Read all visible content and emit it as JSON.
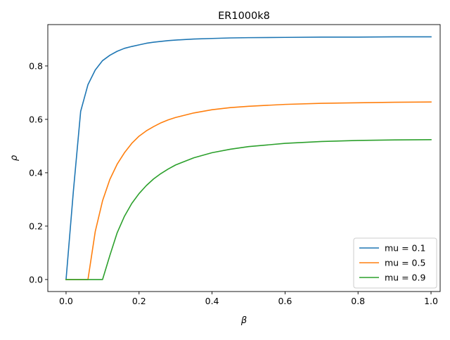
{
  "chart_data": {
    "type": "line",
    "title": "ER1000k8",
    "xlabel": "β",
    "ylabel": "ρ",
    "xlim": [
      -0.05,
      1.025
    ],
    "ylim": [
      -0.045,
      0.955
    ],
    "xticks": [
      0.0,
      0.2,
      0.4,
      0.6,
      0.8,
      1.0
    ],
    "xtick_labels": [
      "0.0",
      "0.2",
      "0.4",
      "0.6",
      "0.8",
      "1.0"
    ],
    "yticks": [
      0.0,
      0.2,
      0.4,
      0.6,
      0.8
    ],
    "ytick_labels": [
      "0.0",
      "0.2",
      "0.4",
      "0.6",
      "0.8"
    ],
    "grid": false,
    "legend": "lower-right",
    "series": [
      {
        "name": "mu = 0.1",
        "color": "#1f77b4",
        "x": [
          0.0,
          0.02,
          0.04,
          0.06,
          0.08,
          0.1,
          0.12,
          0.14,
          0.16,
          0.18,
          0.2,
          0.22,
          0.24,
          0.26,
          0.28,
          0.3,
          0.35,
          0.4,
          0.45,
          0.5,
          0.6,
          0.7,
          0.8,
          0.9,
          1.0
        ],
        "y": [
          0.0,
          0.33,
          0.63,
          0.73,
          0.785,
          0.82,
          0.84,
          0.855,
          0.866,
          0.873,
          0.879,
          0.885,
          0.889,
          0.892,
          0.895,
          0.897,
          0.901,
          0.903,
          0.905,
          0.906,
          0.907,
          0.908,
          0.908,
          0.909,
          0.909
        ]
      },
      {
        "name": "mu = 0.5",
        "color": "#ff7f0e",
        "x": [
          0.0,
          0.06,
          0.08,
          0.1,
          0.12,
          0.14,
          0.16,
          0.18,
          0.2,
          0.22,
          0.24,
          0.26,
          0.28,
          0.3,
          0.35,
          0.4,
          0.45,
          0.5,
          0.6,
          0.7,
          0.8,
          0.9,
          1.0
        ],
        "y": [
          0.0,
          0.0,
          0.18,
          0.295,
          0.375,
          0.432,
          0.475,
          0.51,
          0.537,
          0.557,
          0.573,
          0.587,
          0.598,
          0.607,
          0.624,
          0.636,
          0.644,
          0.649,
          0.656,
          0.66,
          0.662,
          0.664,
          0.665
        ]
      },
      {
        "name": "mu = 0.9",
        "color": "#2ca02c",
        "x": [
          0.0,
          0.1,
          0.12,
          0.14,
          0.16,
          0.18,
          0.2,
          0.22,
          0.24,
          0.26,
          0.28,
          0.3,
          0.35,
          0.4,
          0.45,
          0.5,
          0.6,
          0.7,
          0.8,
          0.9,
          1.0
        ],
        "y": [
          0.0,
          0.0,
          0.09,
          0.175,
          0.237,
          0.285,
          0.322,
          0.352,
          0.377,
          0.397,
          0.414,
          0.429,
          0.456,
          0.475,
          0.488,
          0.498,
          0.51,
          0.517,
          0.521,
          0.523,
          0.524
        ]
      }
    ]
  }
}
